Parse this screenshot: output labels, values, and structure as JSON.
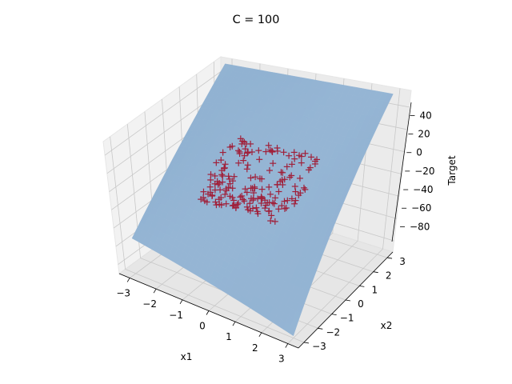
{
  "chart_data": {
    "type": "surface3d",
    "title": "C = 100",
    "xlabel": "x1",
    "ylabel": "x2",
    "zlabel": "Target",
    "xlim": [
      -3.4,
      3.4
    ],
    "ylim": [
      -3.4,
      3.4
    ],
    "zlim": [
      -90,
      55
    ],
    "xticks": [
      "−3",
      "−2",
      "−1",
      "0",
      "1",
      "2",
      "3"
    ],
    "yticks": [
      "−3",
      "−2",
      "−1",
      "0",
      "1",
      "2",
      "3"
    ],
    "zticks": [
      "−80",
      "−60",
      "−40",
      "−20",
      "0",
      "20",
      "40"
    ],
    "xtick_values": [
      -3,
      -2,
      -1,
      0,
      1,
      2,
      3
    ],
    "ytick_values": [
      -3,
      -2,
      -1,
      0,
      1,
      2,
      3
    ],
    "ztick_values": [
      -80,
      -60,
      -40,
      -20,
      0,
      20,
      40
    ],
    "surface": {
      "description": "fitted cubic surface",
      "color": "#1f77b4",
      "alpha": 0.5,
      "corner_values": {
        "x1_-3_x2_-3": -52,
        "x1_3_x2_-3": -88,
        "x1_-3_x2_3": 55,
        "x1_3_x2_3": 55
      }
    },
    "scatter": {
      "marker": "+",
      "color": "#a0203a",
      "x1_range": [
        -1.5,
        1.5
      ],
      "x2_range": [
        -1.5,
        1.5
      ],
      "target_range": [
        -15,
        8
      ]
    },
    "grid": true,
    "legend": "none"
  }
}
